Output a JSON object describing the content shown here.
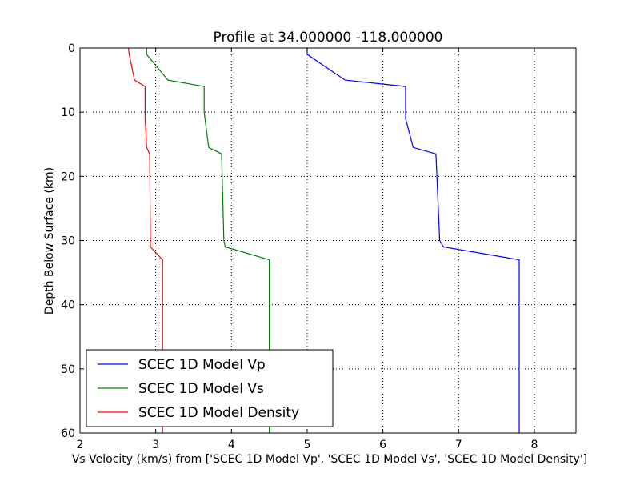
{
  "chart_data": {
    "type": "line",
    "title": "Profile at 34.000000 -118.000000",
    "xlabel": "Vs Velocity (km/s) from ['SCEC 1D Model Vp', 'SCEC 1D Model Vs', 'SCEC 1D Model Density']",
    "ylabel": "Depth Below Surface (km)",
    "xlim": [
      2,
      8.55
    ],
    "ylim": [
      60,
      0
    ],
    "y_inverted": true,
    "grid": true,
    "legend_position": "lower-left",
    "xticks": [
      2,
      3,
      4,
      5,
      6,
      7,
      8
    ],
    "yticks": [
      0,
      10,
      20,
      30,
      40,
      50,
      60
    ],
    "series": [
      {
        "name": "SCEC 1D Model Vp",
        "color": "#0000ff",
        "points": [
          [
            5.0,
            0
          ],
          [
            5.0,
            1
          ],
          [
            5.5,
            5
          ],
          [
            6.3,
            6
          ],
          [
            6.3,
            10
          ],
          [
            6.3,
            11
          ],
          [
            6.4,
            15.5
          ],
          [
            6.7,
            16.5
          ],
          [
            6.75,
            30
          ],
          [
            6.8,
            31
          ],
          [
            7.8,
            33
          ],
          [
            7.8,
            60
          ]
        ]
      },
      {
        "name": "SCEC 1D Model Vs",
        "color": "#008000",
        "points": [
          [
            2.88,
            0
          ],
          [
            2.88,
            1
          ],
          [
            3.16,
            5
          ],
          [
            3.64,
            6
          ],
          [
            3.64,
            10
          ],
          [
            3.65,
            11
          ],
          [
            3.7,
            15.5
          ],
          [
            3.87,
            16.5
          ],
          [
            3.9,
            30
          ],
          [
            3.92,
            31
          ],
          [
            4.5,
            33
          ],
          [
            4.5,
            60
          ]
        ]
      },
      {
        "name": "SCEC 1D Model Density",
        "color": "#ff0000",
        "points": [
          [
            2.64,
            0
          ],
          [
            2.65,
            1
          ],
          [
            2.72,
            5
          ],
          [
            2.86,
            6
          ],
          [
            2.86,
            10
          ],
          [
            2.86,
            11
          ],
          [
            2.88,
            15.5
          ],
          [
            2.92,
            16.5
          ],
          [
            2.93,
            30
          ],
          [
            2.93,
            31
          ],
          [
            3.09,
            33
          ],
          [
            3.09,
            60
          ]
        ]
      }
    ]
  }
}
